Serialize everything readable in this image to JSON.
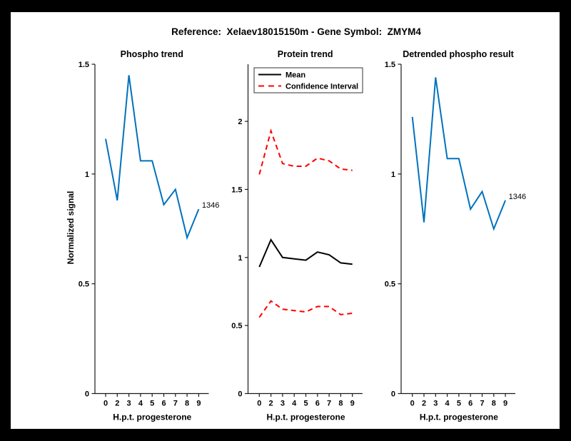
{
  "figure": {
    "title": "Reference:  Xelaev18015150m - Gene Symbol:  ZMYM4",
    "frame_color": "#000000",
    "canvas_color": "#ffffff"
  },
  "colors": {
    "phospho_line": "#0072BD",
    "mean_line": "#000000",
    "confidence_line": "#FF0000",
    "axis": "#1a1a1a",
    "text": "#000000",
    "legend_border": "#333333"
  },
  "chart_data": [
    {
      "type": "line",
      "title": "Phospho trend",
      "xlabel": "H.p.t. progesterone",
      "ylabel": "Normalized signal",
      "x_ticklabels": [
        "0",
        "2",
        "3",
        "4",
        "5",
        "6",
        "7",
        "8",
        "9"
      ],
      "y_ticklabels": [
        "0",
        "0.5",
        "1",
        "1.5"
      ],
      "y_tick_values": [
        0,
        0.5,
        1,
        1.5
      ],
      "ylim": [
        0,
        1.5
      ],
      "grid": false,
      "end_label": "1346",
      "series": [
        {
          "name": "phospho",
          "color": "#0072BD",
          "dash": false,
          "width": 2,
          "values": [
            1.16,
            0.88,
            1.45,
            1.06,
            1.06,
            0.86,
            0.93,
            0.71,
            0.84
          ]
        }
      ],
      "legend": null
    },
    {
      "type": "line",
      "title": "Protein trend",
      "xlabel": "H.p.t. progesterone",
      "ylabel": "",
      "x_ticklabels": [
        "0",
        "2",
        "3",
        "4",
        "5",
        "6",
        "7",
        "8",
        "9"
      ],
      "y_ticklabels": [
        "0",
        "0.5",
        "1",
        "1.5",
        "2"
      ],
      "y_tick_values": [
        0,
        0.5,
        1,
        1.5,
        2
      ],
      "ylim": [
        0,
        2.42
      ],
      "grid": false,
      "end_label": null,
      "series": [
        {
          "name": "Mean",
          "color": "#000000",
          "dash": false,
          "width": 2,
          "values": [
            0.93,
            1.13,
            1.0,
            0.99,
            0.98,
            1.04,
            1.02,
            0.96,
            0.95
          ]
        },
        {
          "name": "Confidence Interval upper",
          "color": "#FF0000",
          "dash": true,
          "width": 2,
          "values": [
            1.61,
            1.93,
            1.69,
            1.67,
            1.67,
            1.73,
            1.71,
            1.65,
            1.64
          ]
        },
        {
          "name": "Confidence Interval lower",
          "color": "#FF0000",
          "dash": true,
          "width": 2,
          "values": [
            0.56,
            0.68,
            0.62,
            0.61,
            0.6,
            0.64,
            0.64,
            0.58,
            0.59
          ]
        }
      ],
      "legend": {
        "position": "top-left",
        "entries": [
          {
            "label": "Mean",
            "color": "#000000",
            "dash": false
          },
          {
            "label": "Confidence Interval",
            "color": "#FF0000",
            "dash": true
          }
        ]
      }
    },
    {
      "type": "line",
      "title": "Detrended phospho result",
      "xlabel": "H.p.t. progesterone",
      "ylabel": "",
      "x_ticklabels": [
        "0",
        "2",
        "3",
        "4",
        "5",
        "6",
        "7",
        "8",
        "9"
      ],
      "y_ticklabels": [
        "0",
        "0.5",
        "1",
        "1.5"
      ],
      "y_tick_values": [
        0,
        0.5,
        1,
        1.5
      ],
      "ylim": [
        0,
        1.5
      ],
      "grid": false,
      "end_label": "1346",
      "series": [
        {
          "name": "detrended phospho",
          "color": "#0072BD",
          "dash": false,
          "width": 2,
          "values": [
            1.26,
            0.78,
            1.44,
            1.07,
            1.07,
            0.84,
            0.92,
            0.75,
            0.88
          ]
        }
      ],
      "legend": null
    }
  ]
}
